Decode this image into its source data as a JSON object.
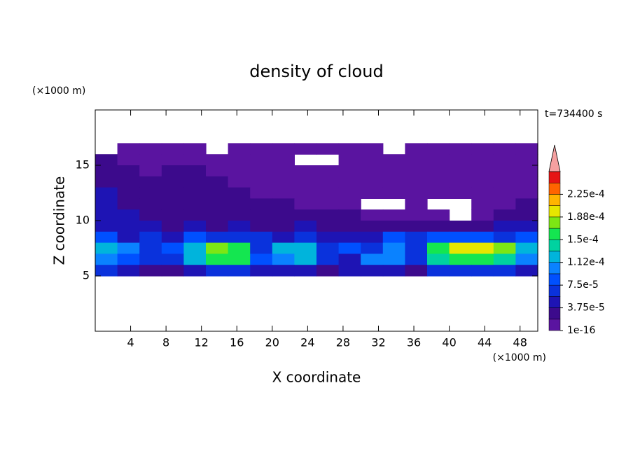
{
  "chart_data": {
    "type": "contour",
    "title": "density of cloud",
    "x_label": "X coordinate",
    "y_label": "Z coordinate",
    "x_unit": "(×1000 m)",
    "y_unit": "(×1000 m)",
    "annotation": "t=734400 s",
    "xlim": [
      0,
      50
    ],
    "ylim": [
      0,
      20
    ],
    "xticks": [
      4,
      8,
      12,
      16,
      20,
      24,
      28,
      32,
      36,
      40,
      44,
      48
    ],
    "yticks": [
      5,
      10,
      15
    ],
    "x": [
      1.25,
      3.75,
      6.25,
      8.75,
      11.25,
      13.75,
      16.25,
      18.75,
      21.25,
      23.75,
      26.25,
      28.75,
      31.25,
      33.75,
      36.25,
      38.75,
      41.25,
      43.75,
      46.25,
      48.75
    ],
    "y": [
      16.5,
      15.5,
      14.5,
      13.5,
      12.5,
      11.5,
      10.5,
      9.5,
      8.5,
      7.5,
      6.5,
      5.5
    ],
    "z": [
      [
        null,
        1e-06,
        1e-06,
        1e-06,
        1e-06,
        null,
        1e-06,
        1e-06,
        1e-06,
        1e-06,
        1e-06,
        1e-06,
        1e-06,
        null,
        1e-06,
        1e-06,
        1e-06,
        1e-06,
        1e-06,
        1e-06
      ],
      [
        2.5e-05,
        1e-06,
        1e-06,
        1e-06,
        1e-06,
        1e-06,
        1e-06,
        1e-06,
        1e-06,
        null,
        null,
        1e-06,
        1e-06,
        1e-06,
        1e-06,
        1e-06,
        1e-06,
        1e-06,
        1e-06,
        1e-06
      ],
      [
        2.5e-05,
        2.5e-05,
        1e-06,
        2.5e-05,
        2.5e-05,
        1e-06,
        1e-06,
        1e-06,
        1e-06,
        1e-06,
        1e-06,
        1e-06,
        1e-06,
        1e-06,
        1e-06,
        1e-06,
        1e-06,
        1e-06,
        1e-06,
        1e-06
      ],
      [
        2.5e-05,
        2.5e-05,
        2.5e-05,
        2.5e-05,
        2.5e-05,
        2.5e-05,
        1e-06,
        1e-06,
        1e-06,
        1e-06,
        1e-06,
        1e-06,
        1e-06,
        1e-06,
        1e-06,
        1e-06,
        1e-06,
        1e-06,
        1e-06,
        1e-06
      ],
      [
        4.5e-05,
        2.5e-05,
        2.5e-05,
        2.5e-05,
        2.5e-05,
        2.5e-05,
        2.5e-05,
        1e-06,
        1e-06,
        1e-06,
        1e-06,
        1e-06,
        1e-06,
        1e-06,
        1e-06,
        1e-06,
        1e-06,
        1e-06,
        1e-06,
        1e-06
      ],
      [
        4.5e-05,
        2.5e-05,
        2.5e-05,
        2.5e-05,
        2.5e-05,
        2.5e-05,
        2.5e-05,
        2.5e-05,
        2.5e-05,
        1e-06,
        1e-06,
        1e-06,
        null,
        null,
        1e-06,
        null,
        null,
        1e-06,
        1e-06,
        2.5e-05
      ],
      [
        4.5e-05,
        4.5e-05,
        2.5e-05,
        2.5e-05,
        2.5e-05,
        2.5e-05,
        2.5e-05,
        2.5e-05,
        2.5e-05,
        2.5e-05,
        2.5e-05,
        2.5e-05,
        1e-06,
        1e-06,
        1e-06,
        1e-06,
        null,
        1e-06,
        2.5e-05,
        2.5e-05
      ],
      [
        4.5e-05,
        4.5e-05,
        4.5e-05,
        2.5e-05,
        4.5e-05,
        2.5e-05,
        4.5e-05,
        2.5e-05,
        2.5e-05,
        4.5e-05,
        2.5e-05,
        2.5e-05,
        2.5e-05,
        2.5e-05,
        2.5e-05,
        2.5e-05,
        2.5e-05,
        2.5e-05,
        4.5e-05,
        4.5e-05
      ],
      [
        8.5e-05,
        4.5e-05,
        6.5e-05,
        4.5e-05,
        8.5e-05,
        6.5e-05,
        6.5e-05,
        6.5e-05,
        4.5e-05,
        6.5e-05,
        4.5e-05,
        4.5e-05,
        4.5e-05,
        8.5e-05,
        6.5e-05,
        8.5e-05,
        8.5e-05,
        8.5e-05,
        6.5e-05,
        8.5e-05
      ],
      [
        0.00012,
        0.0001,
        6.5e-05,
        8.5e-05,
        0.00012,
        0.00018,
        0.00016,
        6.5e-05,
        0.00012,
        0.00012,
        6.5e-05,
        8.5e-05,
        6.5e-05,
        0.0001,
        6.5e-05,
        0.00016,
        0.000195,
        0.000195,
        0.00018,
        0.00012
      ],
      [
        0.0001,
        8.5e-05,
        6.5e-05,
        6.5e-05,
        0.00012,
        0.00016,
        0.00016,
        8.5e-05,
        0.0001,
        0.00012,
        6.5e-05,
        4.5e-05,
        0.0001,
        0.0001,
        6.5e-05,
        0.00014,
        0.00016,
        0.00016,
        0.00014,
        0.0001
      ],
      [
        6.5e-05,
        4.5e-05,
        2.5e-05,
        2.5e-05,
        4.5e-05,
        6.5e-05,
        6.5e-05,
        4.5e-05,
        4.5e-05,
        4.5e-05,
        2.5e-05,
        4.5e-05,
        4.5e-05,
        4.5e-05,
        2.5e-05,
        6.5e-05,
        6.5e-05,
        6.5e-05,
        6.5e-05,
        4.5e-05
      ]
    ],
    "colorbar": {
      "levels": [
        1e-16,
        1.875e-05,
        3.75e-05,
        5.625e-05,
        7.5e-05,
        9.375e-05,
        0.0001125,
        0.00013125,
        0.00015,
        0.00016875,
        0.0001875,
        0.00020625,
        0.000225,
        0.00024375,
        0.0002625
      ],
      "colors": [
        "#5a14a0",
        "#3c0a8c",
        "#1e14b4",
        "#0a32dc",
        "#0050ff",
        "#0a82ff",
        "#00b4dc",
        "#00d2a0",
        "#14e650",
        "#7de614",
        "#e6e600",
        "#ffb400",
        "#ff6400",
        "#e61414"
      ],
      "over_color": "#f5a0a0",
      "ticks": [
        1e-16,
        {
          "value": 3.75e-05,
          "label": "3.75e-5"
        },
        {
          "value": 7.5e-05,
          "label": "7.5e-5"
        },
        {
          "value": 0.0001125,
          "label": "1.12e-4"
        },
        {
          "value": 0.00015,
          "label": "1.5e-4"
        },
        {
          "value": 0.0001875,
          "label": "1.88e-4"
        },
        {
          "value": 0.000225,
          "label": "2.25e-4"
        }
      ]
    }
  }
}
